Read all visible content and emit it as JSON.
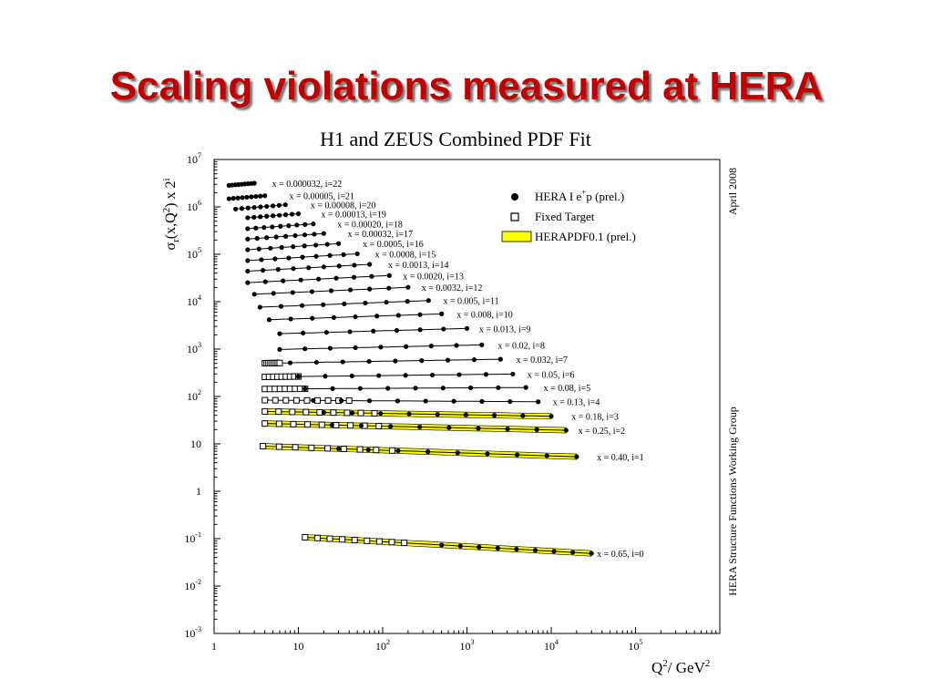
{
  "slide": {
    "title": "Scaling violations measured at HERA"
  },
  "colors": {
    "title": "#c00000",
    "band": "#ffff00",
    "ink": "#000000"
  },
  "chart_data": {
    "type": "scatter",
    "title": "H1 and ZEUS Combined PDF Fit",
    "xlabel_base": "Q",
    "xlabel_sup": "2",
    "xlabel_unit": "/ GeV",
    "xlabel_unit_sup": "2",
    "ylabel": "σr(x,Q2) x 2i",
    "xscale": "log",
    "yscale": "log",
    "xlim": [
      1,
      1000000
    ],
    "ylim": [
      0.001,
      10000000
    ],
    "x_ticks": [
      {
        "v": 1,
        "base": "1",
        "exp": ""
      },
      {
        "v": 10,
        "base": "10",
        "exp": ""
      },
      {
        "v": 100,
        "base": "10",
        "exp": "2"
      },
      {
        "v": 1000,
        "base": "10",
        "exp": "3"
      },
      {
        "v": 10000,
        "base": "10",
        "exp": "4"
      },
      {
        "v": 100000,
        "base": "10",
        "exp": "5"
      }
    ],
    "y_ticks": [
      {
        "v": 10000000,
        "base": "10",
        "exp": "7"
      },
      {
        "v": 1000000,
        "base": "10",
        "exp": "6"
      },
      {
        "v": 100000,
        "base": "10",
        "exp": "5"
      },
      {
        "v": 10000,
        "base": "10",
        "exp": "4"
      },
      {
        "v": 1000,
        "base": "10",
        "exp": "3"
      },
      {
        "v": 100,
        "base": "10",
        "exp": "2"
      },
      {
        "v": 10,
        "base": "10",
        "exp": ""
      },
      {
        "v": 1,
        "base": "1",
        "exp": ""
      },
      {
        "v": 0.1,
        "base": "10",
        "exp": "-1"
      },
      {
        "v": 0.01,
        "base": "10",
        "exp": "-2"
      },
      {
        "v": 0.001,
        "base": "10",
        "exp": "-3"
      }
    ],
    "legend": {
      "position": "top-right",
      "items": [
        {
          "marker": "filled-circle",
          "label_a": "HERA I e",
          "label_sup": "+",
          "label_b": "p (prel.)"
        },
        {
          "marker": "open-square",
          "label_a": "Fixed Target",
          "label_sup": "",
          "label_b": ""
        },
        {
          "marker": "yellow-band",
          "label_a": "HERAPDF0.1 (prel.)",
          "label_sup": "",
          "label_b": ""
        }
      ]
    },
    "side_labels": {
      "date": "April 2008",
      "group": "HERA Structure Functions Working Group"
    },
    "series": [
      {
        "label": "x = 0.000032, i=22",
        "y": 3000000,
        "hera": [
          1.5,
          3
        ],
        "ft": null,
        "lab_x": 4.2,
        "band": false,
        "slope": 0.15
      },
      {
        "label": "x = 0.00005, i=21",
        "y": 1600000,
        "hera": [
          1.5,
          4
        ],
        "ft": null,
        "lab_x": 6.7,
        "band": false,
        "slope": 0.15
      },
      {
        "label": "x = 0.00008, i=20",
        "y": 1000000,
        "hera": [
          1.8,
          7
        ],
        "ft": null,
        "lab_x": 12,
        "band": false,
        "slope": 0.15
      },
      {
        "label": "x = 0.00013, i=19",
        "y": 650000,
        "hera": [
          2.5,
          10
        ],
        "ft": null,
        "lab_x": 16,
        "band": false,
        "slope": 0.14
      },
      {
        "label": "x = 0.00020, i=18",
        "y": 390000,
        "hera": [
          2.5,
          15
        ],
        "ft": null,
        "lab_x": 25,
        "band": false,
        "slope": 0.13
      },
      {
        "label": "x = 0.00032, i=17",
        "y": 240000,
        "hera": [
          2.5,
          20
        ],
        "ft": null,
        "lab_x": 33,
        "band": false,
        "slope": 0.13
      },
      {
        "label": "x = 0.0005, i=16",
        "y": 145000,
        "hera": [
          2.5,
          30
        ],
        "ft": null,
        "lab_x": 50,
        "band": false,
        "slope": 0.12
      },
      {
        "label": "x = 0.0008, i=15",
        "y": 87000,
        "hera": [
          2.5,
          50
        ],
        "ft": null,
        "lab_x": 70,
        "band": false,
        "slope": 0.11
      },
      {
        "label": "x = 0.0013, i=14",
        "y": 52000,
        "hera": [
          2.5,
          70
        ],
        "ft": null,
        "lab_x": 100,
        "band": false,
        "slope": 0.1
      },
      {
        "label": "x = 0.0020, i=13",
        "y": 30000,
        "hera": [
          2.5,
          120
        ],
        "ft": null,
        "lab_x": 150,
        "band": false,
        "slope": 0.09
      },
      {
        "label": "x = 0.0032, i=12",
        "y": 17000,
        "hera": [
          3,
          200
        ],
        "ft": null,
        "lab_x": 250,
        "band": false,
        "slope": 0.08
      },
      {
        "label": "x = 0.005, i=11",
        "y": 9000,
        "hera": [
          3.5,
          350
        ],
        "ft": null,
        "lab_x": 450,
        "band": false,
        "slope": 0.07
      },
      {
        "label": "x = 0.008, i=10",
        "y": 4800,
        "hera": [
          4.5,
          500
        ],
        "ft": null,
        "lab_x": 650,
        "band": false,
        "slope": 0.06
      },
      {
        "label": "x = 0.013, i=9",
        "y": 2400,
        "hera": [
          6,
          1000
        ],
        "ft": null,
        "lab_x": 1200,
        "band": false,
        "slope": 0.05
      },
      {
        "label": "x = 0.02, i=8",
        "y": 1100,
        "hera": [
          6,
          1500
        ],
        "ft": null,
        "lab_x": 2000,
        "band": false,
        "slope": 0.04
      },
      {
        "label": "x = 0.032, i=7",
        "y": 560,
        "hera": [
          8,
          2500
        ],
        "ft": [
          4,
          6
        ],
        "lab_x": 3300,
        "band": false,
        "slope": 0.03
      },
      {
        "label": "x = 0.05, i=6",
        "y": 280,
        "hera": [
          10,
          3500
        ],
        "ft": [
          4,
          10
        ],
        "lab_x": 4500,
        "band": false,
        "slope": 0.02
      },
      {
        "label": "x = 0.08, i=5",
        "y": 150,
        "hera": [
          12,
          5000
        ],
        "ft": [
          4,
          12
        ],
        "lab_x": 7000,
        "band": false,
        "slope": 0.01
      },
      {
        "label": "x = 0.13, i=4",
        "y": 80,
        "hera": [
          15,
          7000
        ],
        "ft": [
          4,
          40
        ],
        "lab_x": 9000,
        "band": false,
        "slope": -0.01
      },
      {
        "label": "x = 0.18, i=3",
        "y": 42,
        "hera": [
          20,
          10000
        ],
        "ft": [
          4,
          80
        ],
        "lab_x": 15000,
        "band": true,
        "slope": -0.03
      },
      {
        "label": "x = 0.25, i=2",
        "y": 22,
        "hera": [
          25,
          15000
        ],
        "ft": [
          4,
          90
        ],
        "lab_x": 18000,
        "band": true,
        "slope": -0.04
      },
      {
        "label": "x = 0.40, i=1",
        "y": 6.5,
        "hera": [
          30,
          20000
        ],
        "ft": [
          3.8,
          130
        ],
        "lab_x": 30000,
        "band": true,
        "slope": -0.06
      },
      {
        "label": "x = 0.65, i=0",
        "y": 0.06,
        "hera": [
          500,
          30000
        ],
        "ft": [
          12,
          180
        ],
        "lab_x": 30000,
        "band": true,
        "slope": -0.1
      }
    ]
  }
}
